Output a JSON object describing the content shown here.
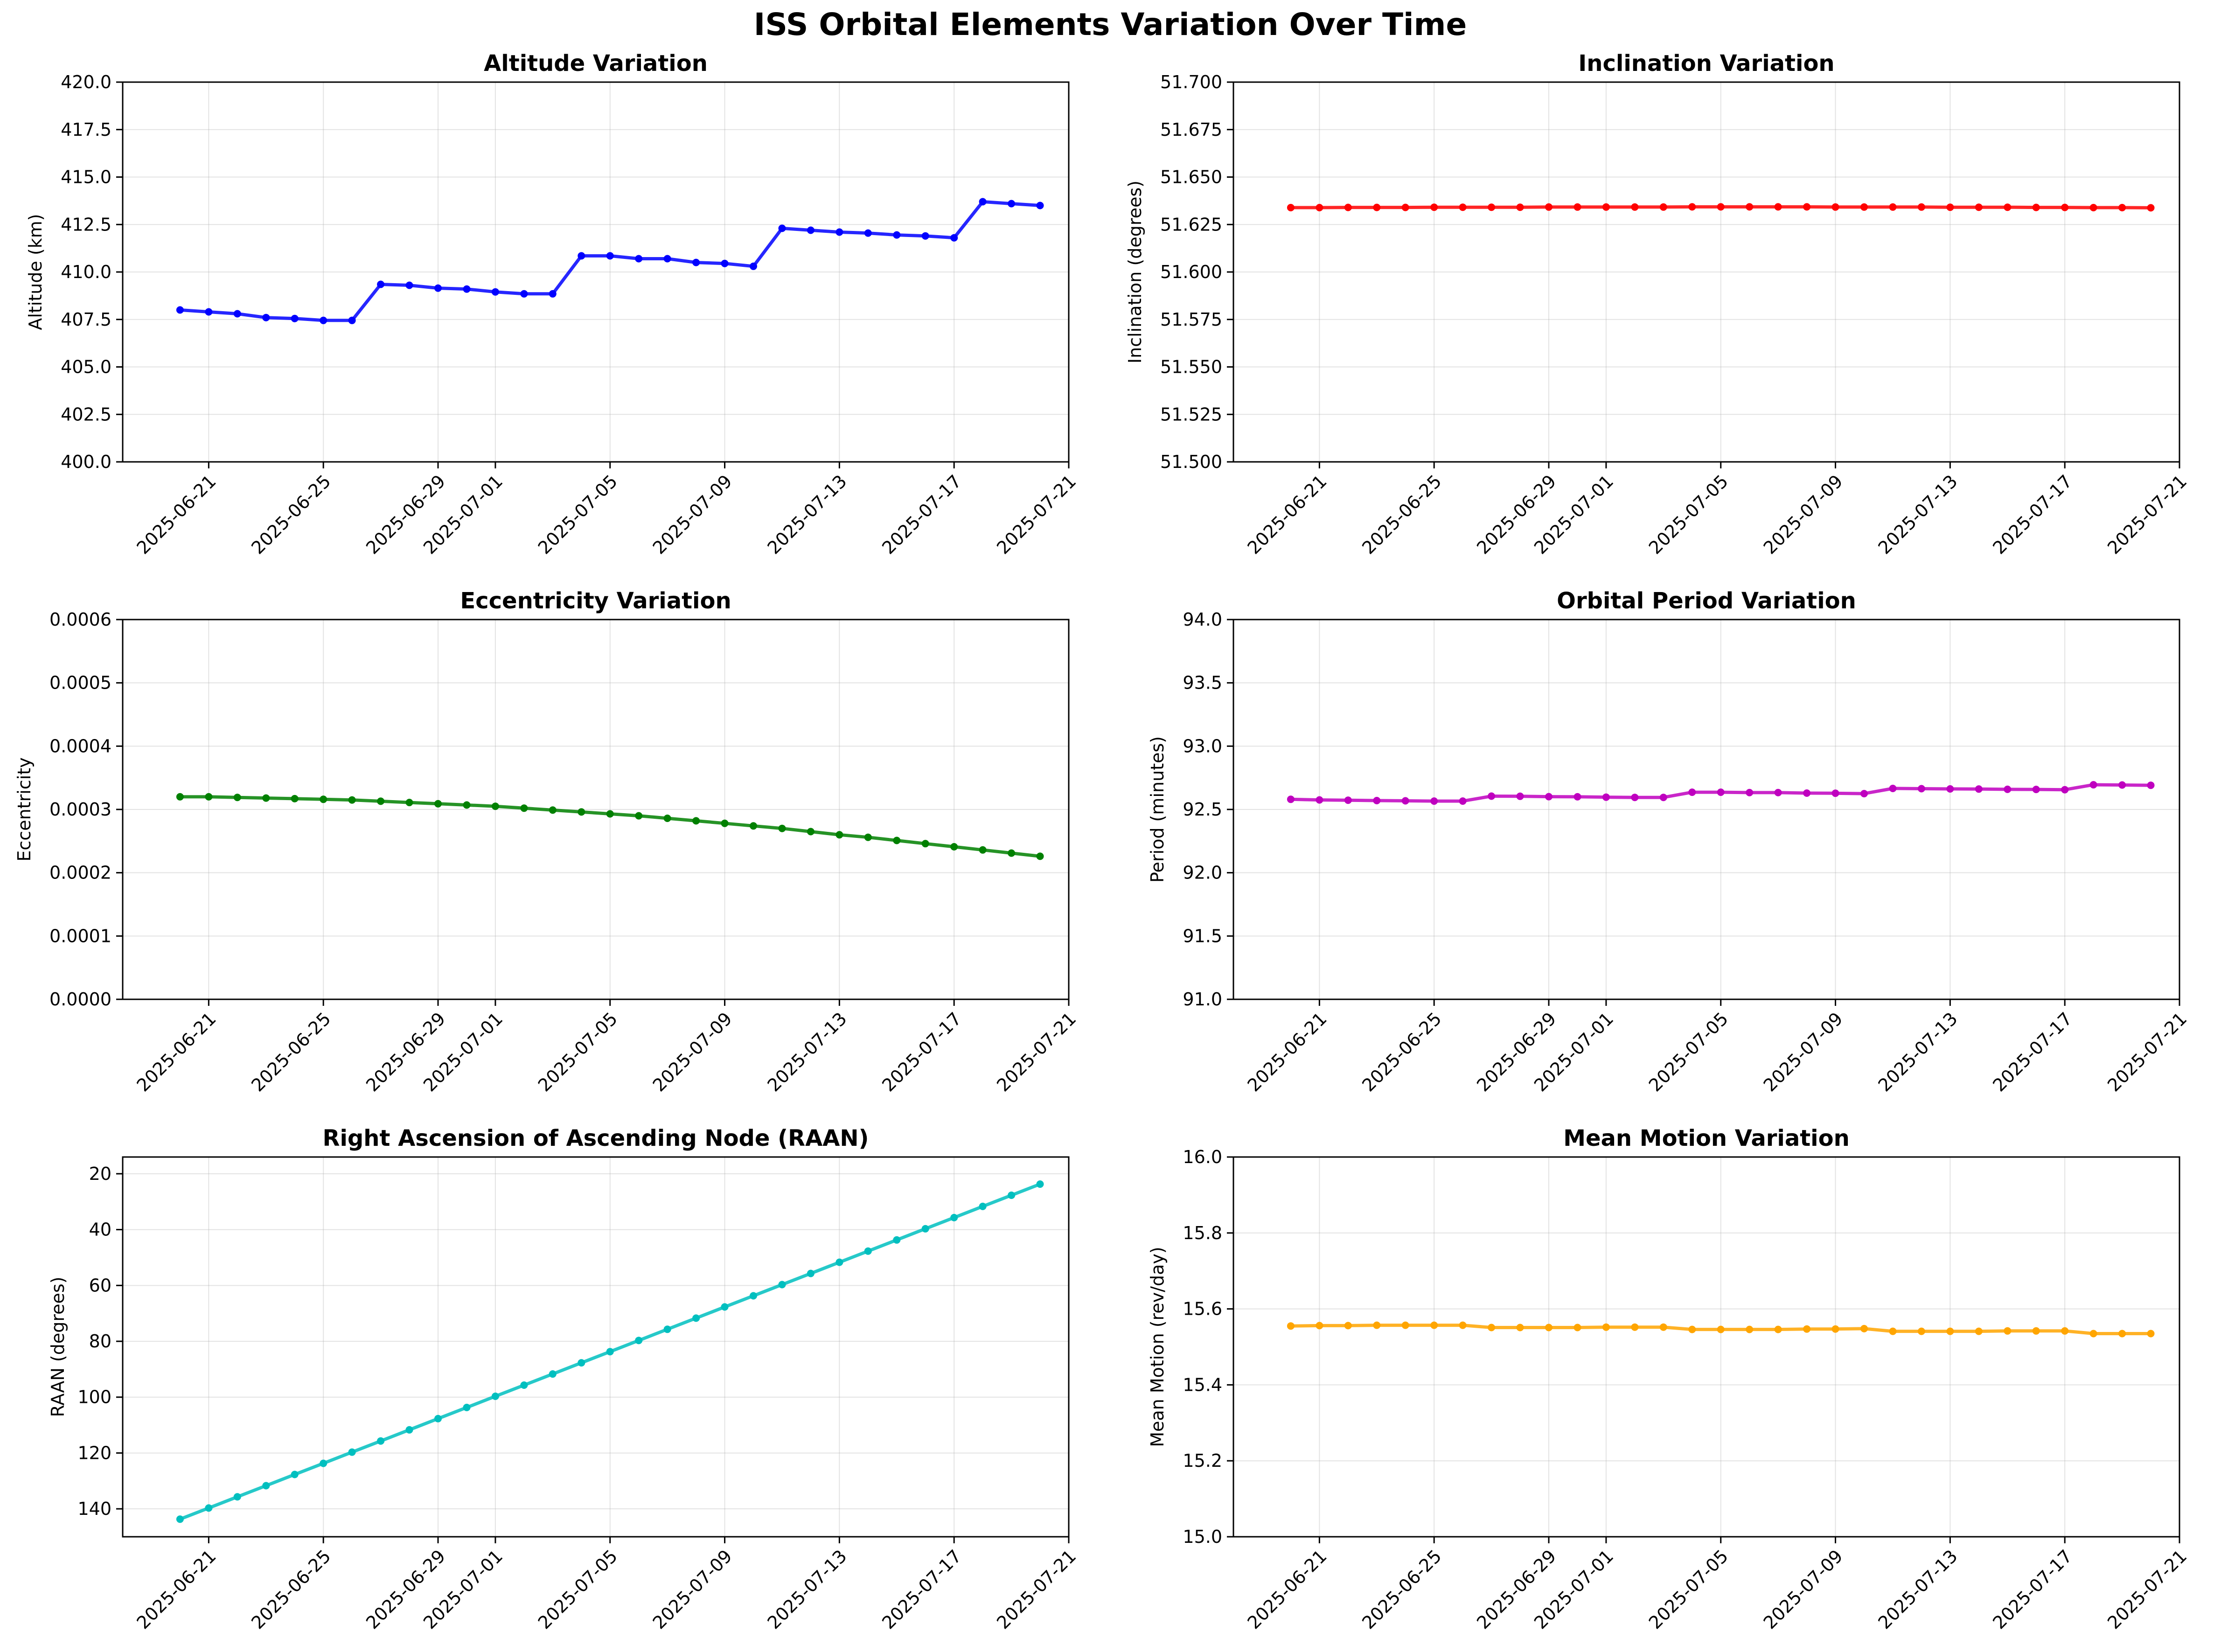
{
  "figure": {
    "suptitle": "ISS Orbital Elements Variation Over Time"
  },
  "chart_data": [
    {
      "type": "line",
      "title": "Altitude Variation",
      "xlabel": "",
      "ylabel": "Altitude (km)",
      "color": "#0000ff",
      "grid": true,
      "y_inverted": false,
      "ylim": [
        400,
        420
      ],
      "yticks": [
        "400.0",
        "402.5",
        "405.0",
        "407.5",
        "410.0",
        "412.5",
        "415.0",
        "417.5",
        "420.0"
      ],
      "xlim": [
        "2025-06-18",
        "2025-07-21"
      ],
      "xticks": [
        "2025-06-21",
        "2025-06-25",
        "2025-06-29",
        "2025-07-01",
        "2025-07-05",
        "2025-07-09",
        "2025-07-13",
        "2025-07-17",
        "2025-07-21"
      ],
      "x": [
        "2025-06-20",
        "2025-06-21",
        "2025-06-22",
        "2025-06-23",
        "2025-06-24",
        "2025-06-25",
        "2025-06-26",
        "2025-06-27",
        "2025-06-28",
        "2025-06-29",
        "2025-06-30",
        "2025-07-01",
        "2025-07-02",
        "2025-07-03",
        "2025-07-04",
        "2025-07-05",
        "2025-07-06",
        "2025-07-07",
        "2025-07-08",
        "2025-07-09",
        "2025-07-10",
        "2025-07-11",
        "2025-07-12",
        "2025-07-13",
        "2025-07-14",
        "2025-07-15",
        "2025-07-16",
        "2025-07-17",
        "2025-07-18",
        "2025-07-19",
        "2025-07-20"
      ],
      "values": [
        408.0,
        407.9,
        407.8,
        407.6,
        407.55,
        407.45,
        407.45,
        409.35,
        409.3,
        409.15,
        409.1,
        408.95,
        408.85,
        408.85,
        410.85,
        410.85,
        410.7,
        410.7,
        410.5,
        410.45,
        410.3,
        412.3,
        412.2,
        412.1,
        412.05,
        411.95,
        411.9,
        411.8,
        413.7,
        413.6,
        413.5
      ]
    },
    {
      "type": "line",
      "title": "Inclination Variation",
      "xlabel": "",
      "ylabel": "Inclination (degrees)",
      "color": "#ff0000",
      "grid": true,
      "y_inverted": false,
      "ylim": [
        51.5,
        51.7
      ],
      "yticks": [
        "51.500",
        "51.525",
        "51.550",
        "51.575",
        "51.600",
        "51.625",
        "51.650",
        "51.675",
        "51.700"
      ],
      "xlim": [
        "2025-06-18",
        "2025-07-21"
      ],
      "xticks": [
        "2025-06-21",
        "2025-06-25",
        "2025-06-29",
        "2025-07-01",
        "2025-07-05",
        "2025-07-09",
        "2025-07-13",
        "2025-07-17",
        "2025-07-21"
      ],
      "x": [
        "2025-06-20",
        "2025-06-21",
        "2025-06-22",
        "2025-06-23",
        "2025-06-24",
        "2025-06-25",
        "2025-06-26",
        "2025-06-27",
        "2025-06-28",
        "2025-06-29",
        "2025-06-30",
        "2025-07-01",
        "2025-07-02",
        "2025-07-03",
        "2025-07-04",
        "2025-07-05",
        "2025-07-06",
        "2025-07-07",
        "2025-07-08",
        "2025-07-09",
        "2025-07-10",
        "2025-07-11",
        "2025-07-12",
        "2025-07-13",
        "2025-07-14",
        "2025-07-15",
        "2025-07-16",
        "2025-07-17",
        "2025-07-18",
        "2025-07-19",
        "2025-07-20"
      ],
      "values": [
        51.6339,
        51.6339,
        51.634,
        51.634,
        51.634,
        51.6341,
        51.6341,
        51.6341,
        51.6341,
        51.6342,
        51.6342,
        51.6342,
        51.6342,
        51.6342,
        51.6343,
        51.6343,
        51.6343,
        51.6343,
        51.6343,
        51.6342,
        51.6342,
        51.6342,
        51.6342,
        51.6341,
        51.6341,
        51.6341,
        51.634,
        51.634,
        51.6339,
        51.6339,
        51.6338
      ]
    },
    {
      "type": "line",
      "title": "Eccentricity Variation",
      "xlabel": "",
      "ylabel": "Eccentricity",
      "color": "#008000",
      "grid": true,
      "y_inverted": false,
      "ylim": [
        0,
        0.0006
      ],
      "yticks": [
        "0.0000",
        "0.0001",
        "0.0002",
        "0.0003",
        "0.0004",
        "0.0005",
        "0.0006"
      ],
      "xlim": [
        "2025-06-18",
        "2025-07-21"
      ],
      "xticks": [
        "2025-06-21",
        "2025-06-25",
        "2025-06-29",
        "2025-07-01",
        "2025-07-05",
        "2025-07-09",
        "2025-07-13",
        "2025-07-17",
        "2025-07-21"
      ],
      "x": [
        "2025-06-20",
        "2025-06-21",
        "2025-06-22",
        "2025-06-23",
        "2025-06-24",
        "2025-06-25",
        "2025-06-26",
        "2025-06-27",
        "2025-06-28",
        "2025-06-29",
        "2025-06-30",
        "2025-07-01",
        "2025-07-02",
        "2025-07-03",
        "2025-07-04",
        "2025-07-05",
        "2025-07-06",
        "2025-07-07",
        "2025-07-08",
        "2025-07-09",
        "2025-07-10",
        "2025-07-11",
        "2025-07-12",
        "2025-07-13",
        "2025-07-14",
        "2025-07-15",
        "2025-07-16",
        "2025-07-17",
        "2025-07-18",
        "2025-07-19",
        "2025-07-20"
      ],
      "values": [
        0.00032,
        0.00032,
        0.000319,
        0.000318,
        0.000317,
        0.000316,
        0.000315,
        0.000313,
        0.000311,
        0.000309,
        0.000307,
        0.000305,
        0.000302,
        0.000299,
        0.000296,
        0.000293,
        0.00029,
        0.000286,
        0.000282,
        0.000278,
        0.000274,
        0.00027,
        0.000265,
        0.00026,
        0.000256,
        0.000251,
        0.000246,
        0.000241,
        0.000236,
        0.000231,
        0.000226
      ]
    },
    {
      "type": "line",
      "title": "Orbital Period Variation",
      "xlabel": "",
      "ylabel": "Period (minutes)",
      "color": "#bf00bf",
      "grid": true,
      "y_inverted": false,
      "ylim": [
        91,
        94
      ],
      "yticks": [
        "91.0",
        "91.5",
        "92.0",
        "92.5",
        "93.0",
        "93.5",
        "94.0"
      ],
      "xlim": [
        "2025-06-18",
        "2025-07-21"
      ],
      "xticks": [
        "2025-06-21",
        "2025-06-25",
        "2025-06-29",
        "2025-07-01",
        "2025-07-05",
        "2025-07-09",
        "2025-07-13",
        "2025-07-17",
        "2025-07-21"
      ],
      "x": [
        "2025-06-20",
        "2025-06-21",
        "2025-06-22",
        "2025-06-23",
        "2025-06-24",
        "2025-06-25",
        "2025-06-26",
        "2025-06-27",
        "2025-06-28",
        "2025-06-29",
        "2025-06-30",
        "2025-07-01",
        "2025-07-02",
        "2025-07-03",
        "2025-07-04",
        "2025-07-05",
        "2025-07-06",
        "2025-07-07",
        "2025-07-08",
        "2025-07-09",
        "2025-07-10",
        "2025-07-11",
        "2025-07-12",
        "2025-07-13",
        "2025-07-14",
        "2025-07-15",
        "2025-07-16",
        "2025-07-17",
        "2025-07-18",
        "2025-07-19",
        "2025-07-20"
      ],
      "values": [
        92.58,
        92.575,
        92.573,
        92.57,
        92.568,
        92.566,
        92.566,
        92.605,
        92.604,
        92.601,
        92.6,
        92.597,
        92.595,
        92.595,
        92.636,
        92.636,
        92.633,
        92.633,
        92.629,
        92.628,
        92.625,
        92.666,
        92.664,
        92.662,
        92.661,
        92.659,
        92.658,
        92.656,
        92.695,
        92.693,
        92.691
      ]
    },
    {
      "type": "line",
      "title": "Right Ascension of Ascending Node (RAAN)",
      "xlabel": "",
      "ylabel": "RAAN (degrees)",
      "color": "#00bfbf",
      "grid": true,
      "y_inverted": true,
      "ylim": [
        150,
        14
      ],
      "yticks": [
        "20",
        "40",
        "60",
        "80",
        "100",
        "120",
        "140"
      ],
      "xlim": [
        "2025-06-18",
        "2025-07-21"
      ],
      "xticks": [
        "2025-06-21",
        "2025-06-25",
        "2025-06-29",
        "2025-07-01",
        "2025-07-05",
        "2025-07-09",
        "2025-07-13",
        "2025-07-17",
        "2025-07-21"
      ],
      "x": [
        "2025-06-20",
        "2025-06-21",
        "2025-06-22",
        "2025-06-23",
        "2025-06-24",
        "2025-06-25",
        "2025-06-26",
        "2025-06-27",
        "2025-06-28",
        "2025-06-29",
        "2025-06-30",
        "2025-07-01",
        "2025-07-02",
        "2025-07-03",
        "2025-07-04",
        "2025-07-05",
        "2025-07-06",
        "2025-07-07",
        "2025-07-08",
        "2025-07-09",
        "2025-07-10",
        "2025-07-11",
        "2025-07-12",
        "2025-07-13",
        "2025-07-14",
        "2025-07-15",
        "2025-07-16",
        "2025-07-17",
        "2025-07-18",
        "2025-07-19",
        "2025-07-20"
      ],
      "values": [
        143.7,
        139.7,
        135.7,
        131.7,
        127.7,
        123.7,
        119.7,
        115.7,
        111.7,
        107.7,
        103.7,
        99.7,
        95.7,
        91.7,
        87.7,
        83.7,
        79.7,
        75.7,
        71.7,
        67.7,
        63.7,
        59.7,
        55.7,
        51.7,
        47.7,
        43.7,
        39.7,
        35.7,
        31.7,
        27.7,
        23.7
      ]
    },
    {
      "type": "line",
      "title": "Mean Motion Variation",
      "xlabel": "",
      "ylabel": "Mean Motion (rev/day)",
      "color": "#ffa500",
      "grid": true,
      "y_inverted": false,
      "ylim": [
        15,
        16
      ],
      "yticks": [
        "15.0",
        "15.2",
        "15.4",
        "15.6",
        "15.8",
        "16.0"
      ],
      "xlim": [
        "2025-06-18",
        "2025-07-21"
      ],
      "xticks": [
        "2025-06-21",
        "2025-06-25",
        "2025-06-29",
        "2025-07-01",
        "2025-07-05",
        "2025-07-09",
        "2025-07-13",
        "2025-07-17",
        "2025-07-21"
      ],
      "x": [
        "2025-06-20",
        "2025-06-21",
        "2025-06-22",
        "2025-06-23",
        "2025-06-24",
        "2025-06-25",
        "2025-06-26",
        "2025-06-27",
        "2025-06-28",
        "2025-06-29",
        "2025-06-30",
        "2025-07-01",
        "2025-07-02",
        "2025-07-03",
        "2025-07-04",
        "2025-07-05",
        "2025-07-06",
        "2025-07-07",
        "2025-07-08",
        "2025-07-09",
        "2025-07-10",
        "2025-07-11",
        "2025-07-12",
        "2025-07-13",
        "2025-07-14",
        "2025-07-15",
        "2025-07-16",
        "2025-07-17",
        "2025-07-18",
        "2025-07-19",
        "2025-07-20"
      ],
      "values": [
        15.555,
        15.556,
        15.556,
        15.557,
        15.557,
        15.557,
        15.557,
        15.551,
        15.551,
        15.551,
        15.551,
        15.552,
        15.552,
        15.552,
        15.546,
        15.546,
        15.546,
        15.546,
        15.547,
        15.547,
        15.548,
        15.541,
        15.541,
        15.541,
        15.541,
        15.542,
        15.542,
        15.542,
        15.535,
        15.535,
        15.535
      ]
    }
  ]
}
